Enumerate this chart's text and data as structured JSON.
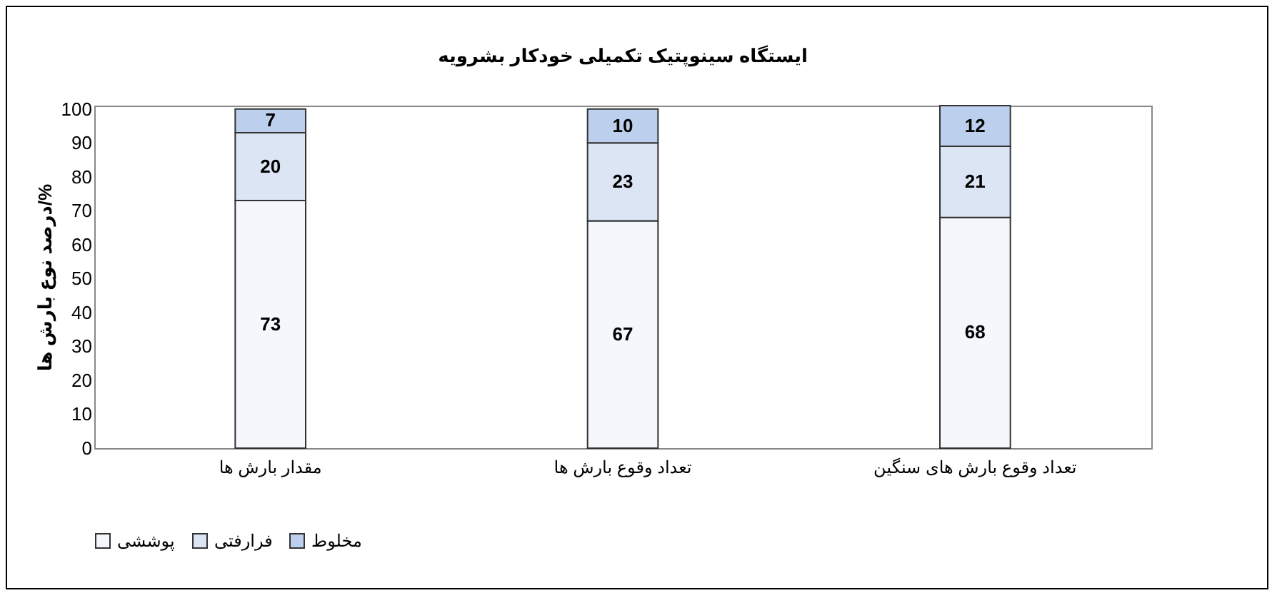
{
  "chart_data": {
    "type": "bar",
    "title": "ایستگاه سینوپتیک تکمیلی خودکار بشرویه",
    "ylabel": "درصد نوع بارش ها/%",
    "categories": [
      "مقدار بارش ها",
      "تعداد وقوع بارش ها",
      "تعداد وقوع بارش های سنگین"
    ],
    "stacked": true,
    "data_labels": true,
    "legend": "bottom left",
    "grid": false,
    "ylim": [
      0,
      101
    ],
    "yticks": [
      0,
      10,
      20,
      30,
      40,
      50,
      60,
      70,
      80,
      90,
      100
    ],
    "series": [
      {
        "name": "پوششی",
        "color": "#f4f7fc",
        "values": [
          73,
          67,
          68
        ]
      },
      {
        "name": "فرارفتی",
        "color": "#dbe5f4",
        "values": [
          20,
          23,
          21
        ]
      },
      {
        "name": "مخلوط",
        "color": "#bccfec",
        "values": [
          7,
          10,
          12
        ]
      }
    ]
  }
}
